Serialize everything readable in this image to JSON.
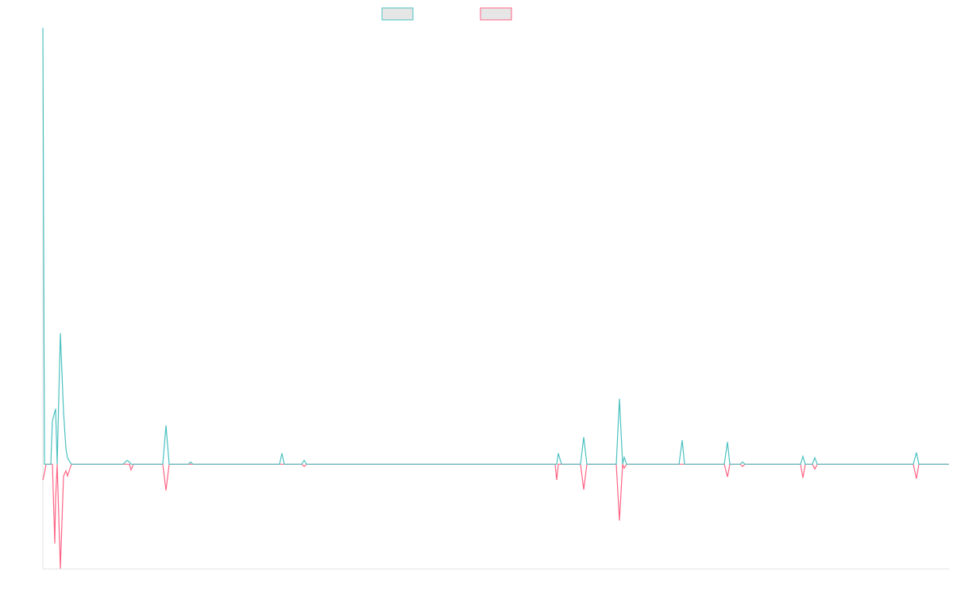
{
  "chart_data": {
    "type": "line",
    "x": [
      0,
      2,
      4,
      10,
      12,
      15,
      16,
      18,
      22,
      26,
      29,
      31,
      34,
      36,
      101,
      106,
      109,
      111,
      114,
      151,
      155,
      159,
      183,
      186,
      189,
      298,
      301,
      304,
      326,
      329,
      332,
      645,
      647,
      649,
      653,
      677,
      681,
      685,
      722,
      726,
      730,
      732,
      735,
      801,
      805,
      808,
      858,
      862,
      865,
      878,
      881,
      884,
      954,
      957,
      960,
      969,
      972,
      975,
      1096,
      1100,
      1103,
      1141
    ],
    "xlim": [
      0,
      1141
    ],
    "ylim": [
      -24,
      100
    ],
    "series": [
      {
        "color": "#4bc0c0",
        "values": [
          100,
          0,
          0,
          0,
          10,
          12,
          12.7,
          0,
          30,
          12,
          3.6,
          1.5,
          0.5,
          0,
          0,
          0.9,
          0.5,
          0,
          0,
          0,
          8.9,
          0,
          0,
          0.5,
          0,
          0,
          2.5,
          0,
          0,
          0.9,
          0,
          0,
          0,
          2.5,
          0,
          0,
          6.2,
          0,
          0,
          15,
          0,
          1.6,
          0,
          0,
          5.5,
          0,
          0,
          5.1,
          0,
          0,
          0.5,
          0,
          0,
          1.8,
          0,
          0,
          1.5,
          0,
          0,
          2.7,
          0,
          0
        ]
      },
      {
        "color": "#ff6384",
        "values": [
          -3.6,
          -2,
          0,
          0,
          0,
          -18.2,
          -8,
          0,
          -23.9,
          -2.7,
          -1.5,
          -2.7,
          -1,
          0,
          0,
          0,
          0,
          -1.3,
          0,
          0,
          -6,
          0,
          0,
          0,
          0,
          0,
          0,
          0,
          0,
          -0.5,
          0,
          0,
          -3.6,
          0,
          0,
          0,
          -5.8,
          0,
          0,
          -12.9,
          0,
          -0.9,
          0,
          0,
          0,
          0,
          0,
          -2.9,
          0,
          0,
          -0.5,
          0,
          0,
          -3.1,
          0,
          0,
          -1.1,
          0,
          0,
          -3.3,
          0,
          0
        ]
      }
    ]
  }
}
